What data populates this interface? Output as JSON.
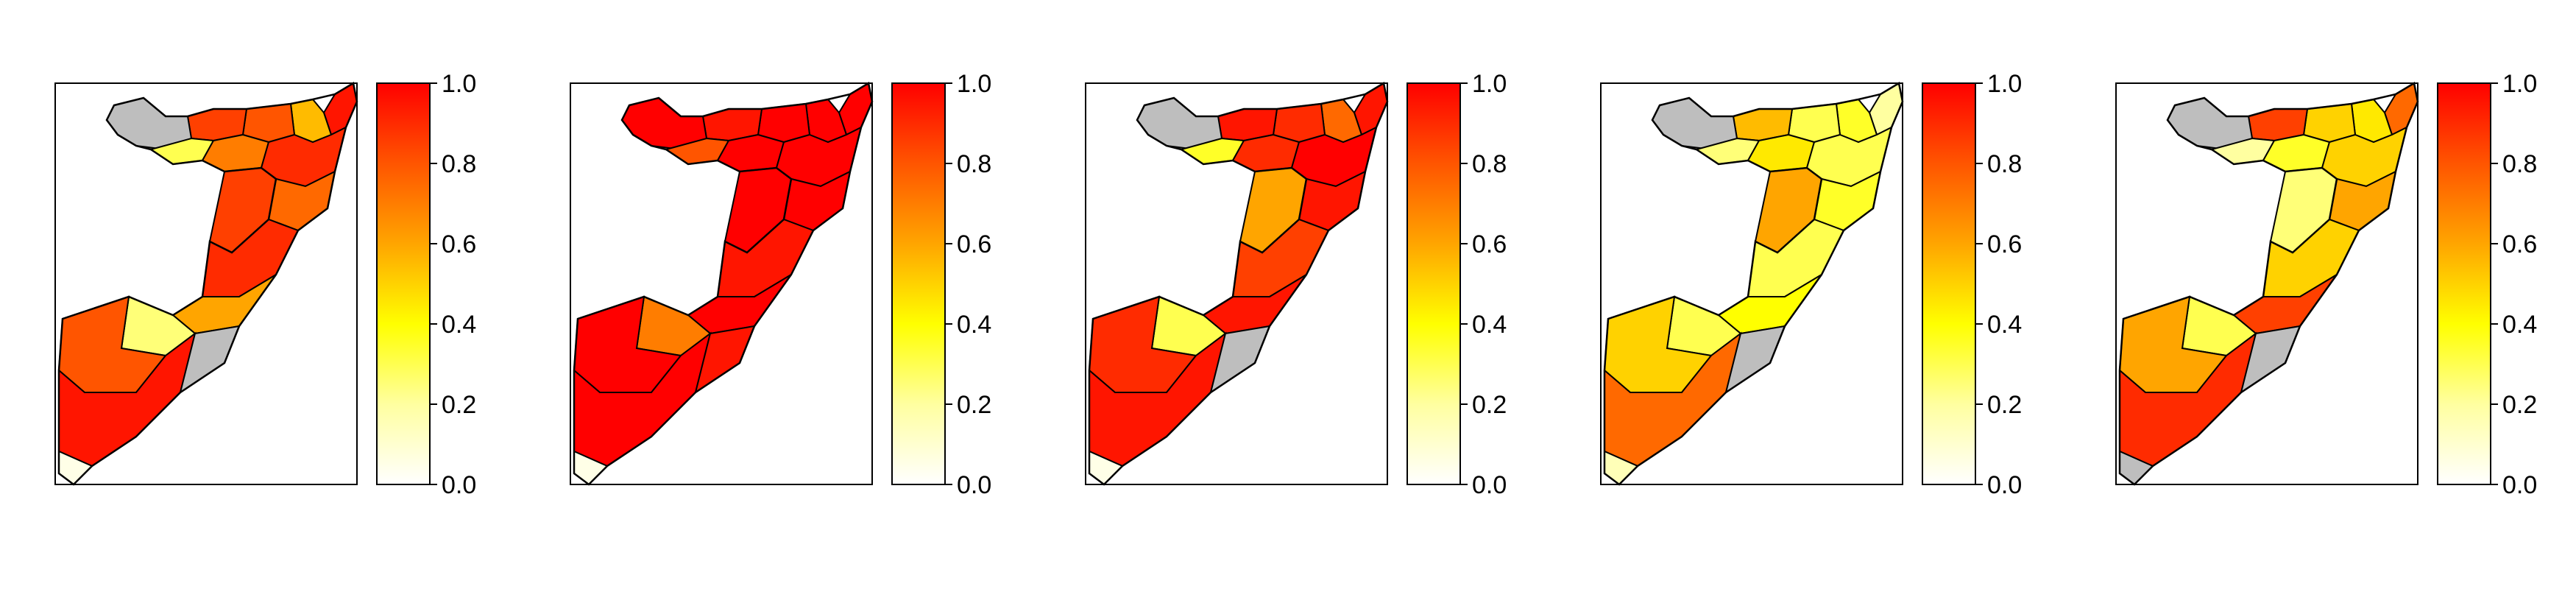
{
  "figure": {
    "panel_count": 5,
    "colorbar": {
      "ticks": [
        "0.0",
        "0.2",
        "0.4",
        "0.6",
        "0.8",
        "1.0"
      ],
      "colors": [
        "#ffffff",
        "#ffff00",
        "#ffcc00",
        "#ff9900",
        "#ff6600",
        "#ff0000"
      ]
    },
    "missing_color": "#bebebe",
    "panels": [
      {
        "id": "panel-1",
        "zone_values": [
          0.95,
          0.55,
          0.8,
          0.85,
          null,
          0.3,
          0.7,
          0.9,
          0.75,
          0.85,
          0.9,
          0.6,
          0.25,
          0.8,
          0.95,
          null,
          0.05
        ]
      },
      {
        "id": "panel-2",
        "zone_values": [
          1.0,
          1.0,
          1.0,
          0.95,
          1.0,
          0.8,
          1.0,
          1.0,
          1.0,
          1.0,
          0.95,
          1.0,
          0.7,
          1.0,
          1.0,
          0.95,
          0.05
        ]
      },
      {
        "id": "panel-3",
        "zone_values": [
          0.95,
          0.75,
          0.9,
          0.95,
          null,
          0.35,
          0.9,
          1.0,
          0.95,
          0.6,
          0.85,
          0.95,
          0.3,
          0.9,
          0.95,
          null,
          0.05
        ]
      },
      {
        "id": "panel-4",
        "zone_values": [
          0.2,
          0.35,
          0.3,
          0.55,
          null,
          0.25,
          0.45,
          0.3,
          0.35,
          0.6,
          0.3,
          0.4,
          0.3,
          0.5,
          0.75,
          null,
          0.15
        ]
      },
      {
        "id": "panel-5",
        "zone_values": [
          0.75,
          0.45,
          0.5,
          0.85,
          null,
          0.2,
          0.35,
          0.5,
          0.6,
          0.25,
          0.5,
          0.85,
          0.3,
          0.6,
          0.9,
          null,
          null
        ]
      }
    ]
  }
}
